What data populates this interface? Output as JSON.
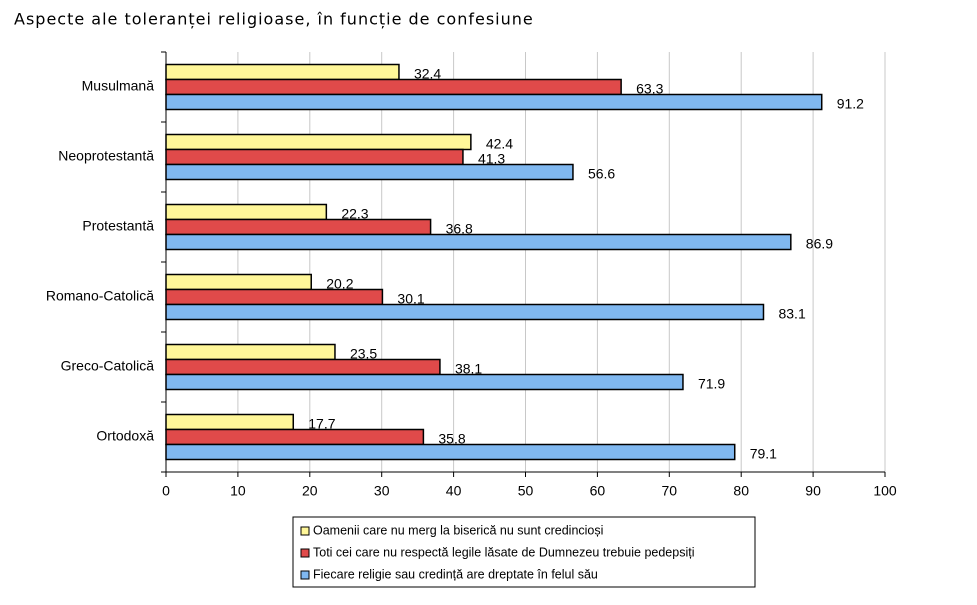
{
  "chart_data": {
    "type": "bar",
    "orientation": "horizontal",
    "title": "Aspecte ale toleranței religioase, în funcție de confesiune",
    "categories": [
      "Musulmană",
      "Neoprotestantă",
      "Protestantă",
      "Romano-Catolică",
      "Greco-Catolică",
      "Ortodoxă"
    ],
    "series": [
      {
        "name": "Oamenii care nu merg la biserică nu sunt credincioși",
        "color": "#fff799",
        "values": [
          32.4,
          42.4,
          22.3,
          20.2,
          23.5,
          17.7
        ]
      },
      {
        "name": "Toti cei care nu respectă legile lăsate de Dumnezeu trebuie pedepsiți",
        "color": "#e04a4a",
        "values": [
          63.3,
          41.3,
          36.8,
          30.1,
          38.1,
          35.8
        ]
      },
      {
        "name": "Fiecare religie sau credință are dreptate în felul său",
        "color": "#80b8f0",
        "values": [
          91.2,
          56.6,
          86.9,
          83.1,
          71.9,
          79.1
        ]
      }
    ],
    "xlim": [
      0,
      100
    ],
    "xticks": [
      0,
      10,
      20,
      30,
      40,
      50,
      60,
      70,
      80,
      90,
      100
    ],
    "grid": true
  }
}
